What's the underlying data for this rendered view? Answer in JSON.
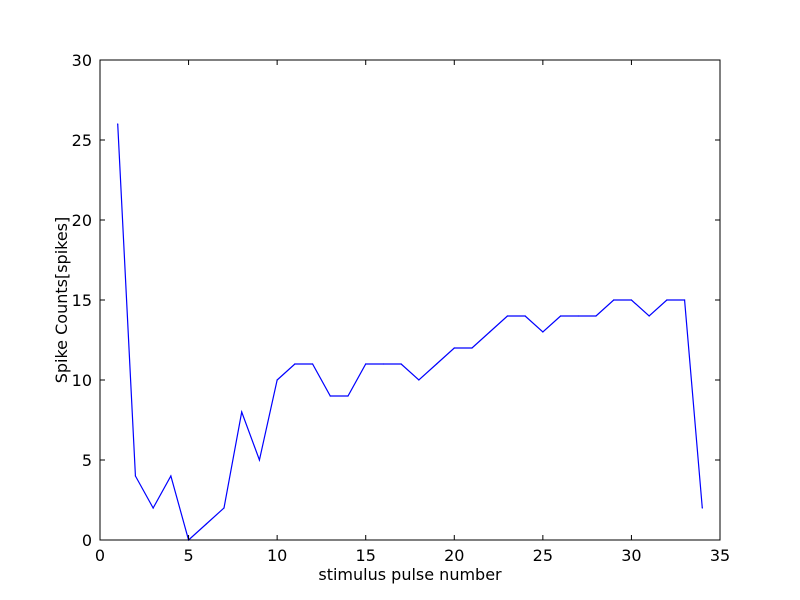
{
  "chart_data": {
    "type": "line",
    "title": "",
    "xlabel": "stimulus pulse number",
    "ylabel": "Spike Counts[spikes]",
    "xlim": [
      0,
      35
    ],
    "ylim": [
      0,
      30
    ],
    "xticks": [
      0,
      5,
      10,
      15,
      20,
      25,
      30,
      35
    ],
    "yticks": [
      0,
      5,
      10,
      15,
      20,
      25,
      30
    ],
    "grid": false,
    "line_color": "#0000ff",
    "series": [
      {
        "name": "spike counts",
        "x": [
          1,
          2,
          3,
          4,
          5,
          6,
          7,
          8,
          9,
          10,
          11,
          12,
          13,
          14,
          15,
          16,
          17,
          18,
          19,
          20,
          21,
          22,
          23,
          24,
          25,
          26,
          27,
          28,
          29,
          30,
          31,
          32,
          33,
          34
        ],
        "values": [
          26,
          4,
          2,
          4,
          0,
          1,
          2,
          8,
          5,
          10,
          11,
          11,
          9,
          9,
          11,
          11,
          11,
          10,
          11,
          12,
          12,
          13,
          14,
          14,
          13,
          14,
          14,
          14,
          15,
          15,
          14,
          15,
          15,
          2
        ]
      }
    ]
  }
}
